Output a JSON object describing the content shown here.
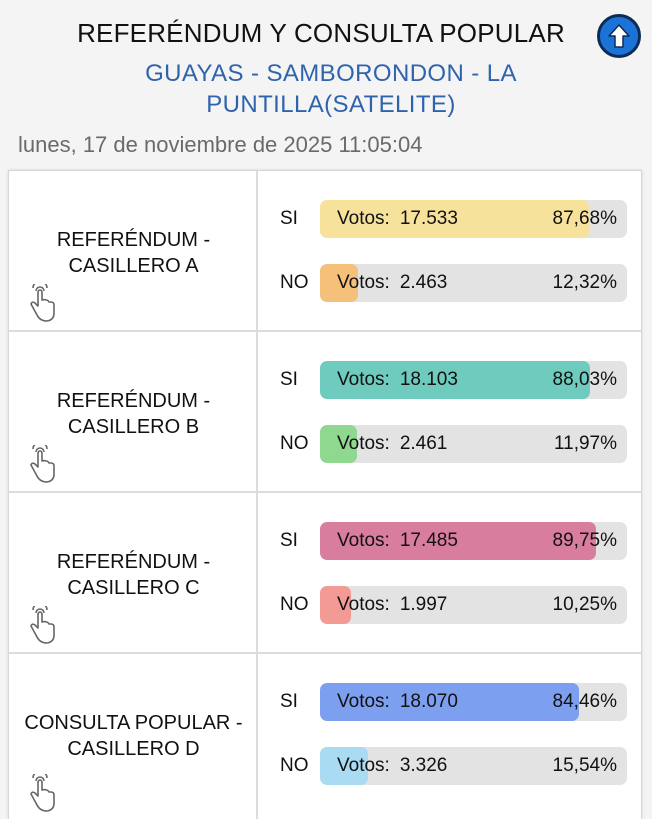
{
  "header": {
    "title": "REFERÉNDUM Y CONSULTA POPULAR",
    "location_line1": "GUAYAS - SAMBORONDON - LA",
    "location_line2": "PUNTILLA(SATELITE)",
    "datetime": "lunes, 17 de noviembre de 2025 11:05:04",
    "up_icon": "arrow-up-circle-icon"
  },
  "votes_label": "Votos:",
  "sections": [
    {
      "title_line1": "REFERÉNDUM -",
      "title_line2": "CASILLERO A",
      "icon": "tap-hand-icon",
      "si": {
        "label": "SI",
        "votes": "17.533",
        "percent_text": "87,68%",
        "percent": 87.68,
        "color": "#f7e29c"
      },
      "no": {
        "label": "NO",
        "votes": "2.463",
        "percent_text": "12,32%",
        "percent": 12.32,
        "color": "#f5c07a"
      }
    },
    {
      "title_line1": "REFERÉNDUM -",
      "title_line2": "CASILLERO B",
      "icon": "tap-hand-icon",
      "si": {
        "label": "SI",
        "votes": "18.103",
        "percent_text": "88,03%",
        "percent": 88.03,
        "color": "#6fcbbd"
      },
      "no": {
        "label": "NO",
        "votes": "2.461",
        "percent_text": "11,97%",
        "percent": 11.97,
        "color": "#8ed88f"
      }
    },
    {
      "title_line1": "REFERÉNDUM -",
      "title_line2": "CASILLERO C",
      "icon": "tap-hand-icon",
      "si": {
        "label": "SI",
        "votes": "17.485",
        "percent_text": "89,75%",
        "percent": 89.75,
        "color": "#d87d9d"
      },
      "no": {
        "label": "NO",
        "votes": "1.997",
        "percent_text": "10,25%",
        "percent": 10.25,
        "color": "#f49a95"
      }
    },
    {
      "title_line1": "CONSULTA POPULAR -",
      "title_line2": "CASILLERO D",
      "icon": "tap-hand-icon",
      "si": {
        "label": "SI",
        "votes": "18.070",
        "percent_text": "84,46%",
        "percent": 84.46,
        "color": "#7d9ff0"
      },
      "no": {
        "label": "NO",
        "votes": "3.326",
        "percent_text": "15,54%",
        "percent": 15.54,
        "color": "#a9dcf2"
      }
    }
  ]
}
